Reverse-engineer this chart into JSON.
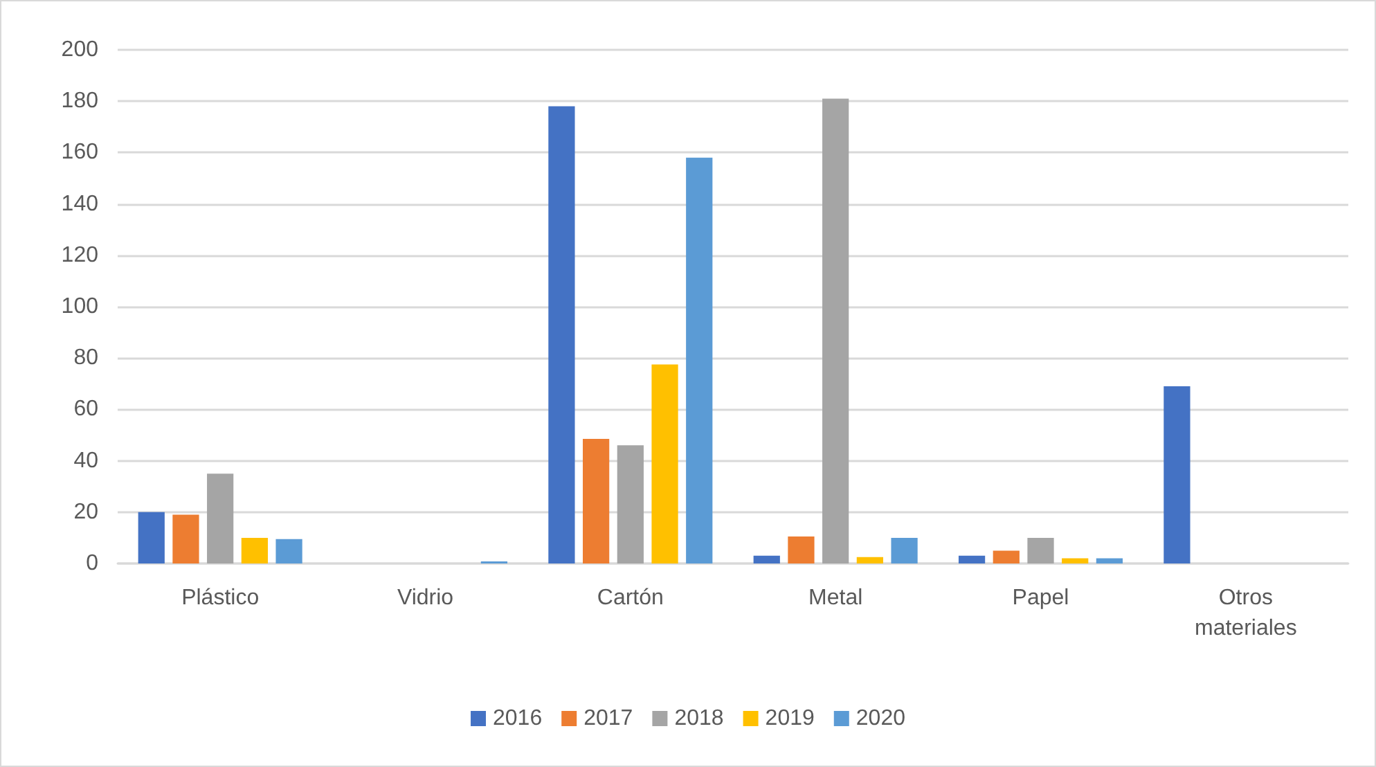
{
  "chart_data": {
    "type": "bar",
    "categories": [
      "Plástico",
      "Vidrio",
      "Cartón",
      "Metal",
      "Papel",
      "Otros materiales"
    ],
    "series": [
      {
        "name": "2016",
        "color": "#4472c4",
        "values": [
          20,
          0,
          178,
          3,
          3,
          69
        ]
      },
      {
        "name": "2017",
        "color": "#ed7d31",
        "values": [
          19,
          0,
          48.5,
          10.5,
          5,
          0
        ]
      },
      {
        "name": "2018",
        "color": "#a5a5a5",
        "values": [
          35,
          0,
          46,
          181,
          10,
          0
        ]
      },
      {
        "name": "2019",
        "color": "#ffc000",
        "values": [
          10,
          0,
          77.5,
          2.5,
          2,
          0
        ]
      },
      {
        "name": "2020",
        "color": "#5b9bd5",
        "values": [
          9.5,
          0.8,
          158,
          10,
          2,
          0
        ]
      }
    ],
    "ylim": [
      0,
      200
    ],
    "yticks": [
      0,
      20,
      40,
      60,
      80,
      100,
      120,
      140,
      160,
      180,
      200
    ],
    "grid": "y",
    "legend": "bottom"
  }
}
